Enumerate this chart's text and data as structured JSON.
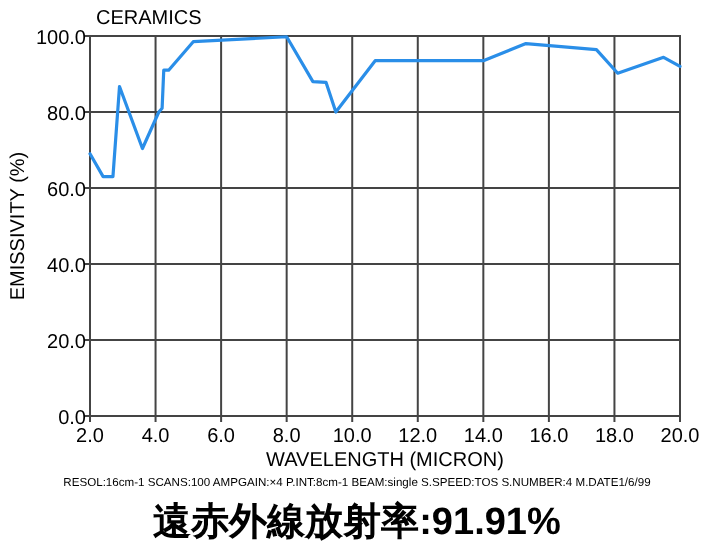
{
  "chart_data": {
    "type": "line",
    "title": "CERAMICS",
    "xlabel": "WAVELENGTH (MICRON)",
    "ylabel": "EMISSIVITY (%)",
    "annotations": [
      "RESOL:16cm-1 SCANS:100 AMPGAIN:×4 P.INT:8cm-1 BEAM:single S.SPEED:TOS S.NUMBER:4 M.DATE1/6/99",
      "遠赤外線放射率:91.91%"
    ],
    "x": [
      2.0,
      2.4,
      2.7,
      2.9,
      3.6,
      4.1,
      4.2,
      4.25,
      4.4,
      5.15,
      8.0,
      8.8,
      9.2,
      9.5,
      10.7,
      14.0,
      15.3,
      17.45,
      18.1,
      19.5,
      20.0
    ],
    "series": [
      {
        "color": "#2a8ee8",
        "values": [
          69,
          63,
          63,
          86.7,
          70.4,
          80,
          81,
          91,
          91,
          98.5,
          99.8,
          88,
          87.8,
          80,
          93.5,
          93.5,
          98,
          96.4,
          90.2,
          94.4,
          92
        ]
      }
    ],
    "xlim": [
      2,
      20
    ],
    "ylim": [
      0,
      100
    ],
    "xticks": [
      {
        "value": 2,
        "label": "2.0"
      },
      {
        "value": 4,
        "label": "4.0"
      },
      {
        "value": 6,
        "label": "6.0"
      },
      {
        "value": 8,
        "label": "8.0"
      },
      {
        "value": 10,
        "label": "10.0"
      },
      {
        "value": 12,
        "label": "12.0"
      },
      {
        "value": 14,
        "label": "14.0"
      },
      {
        "value": 16,
        "label": "16.0"
      },
      {
        "value": 18,
        "label": "18.0"
      },
      {
        "value": 20,
        "label": "20.0"
      }
    ],
    "yticks": [
      {
        "value": 0,
        "label": "0.0"
      },
      {
        "value": 20,
        "label": "20.0"
      },
      {
        "value": 40,
        "label": "40.0"
      },
      {
        "value": 60,
        "label": "60.0"
      },
      {
        "value": 80,
        "label": "80.0"
      },
      {
        "value": 100,
        "label": "100.0"
      }
    ],
    "grid": true,
    "marker": "none",
    "line_style": "solid"
  }
}
